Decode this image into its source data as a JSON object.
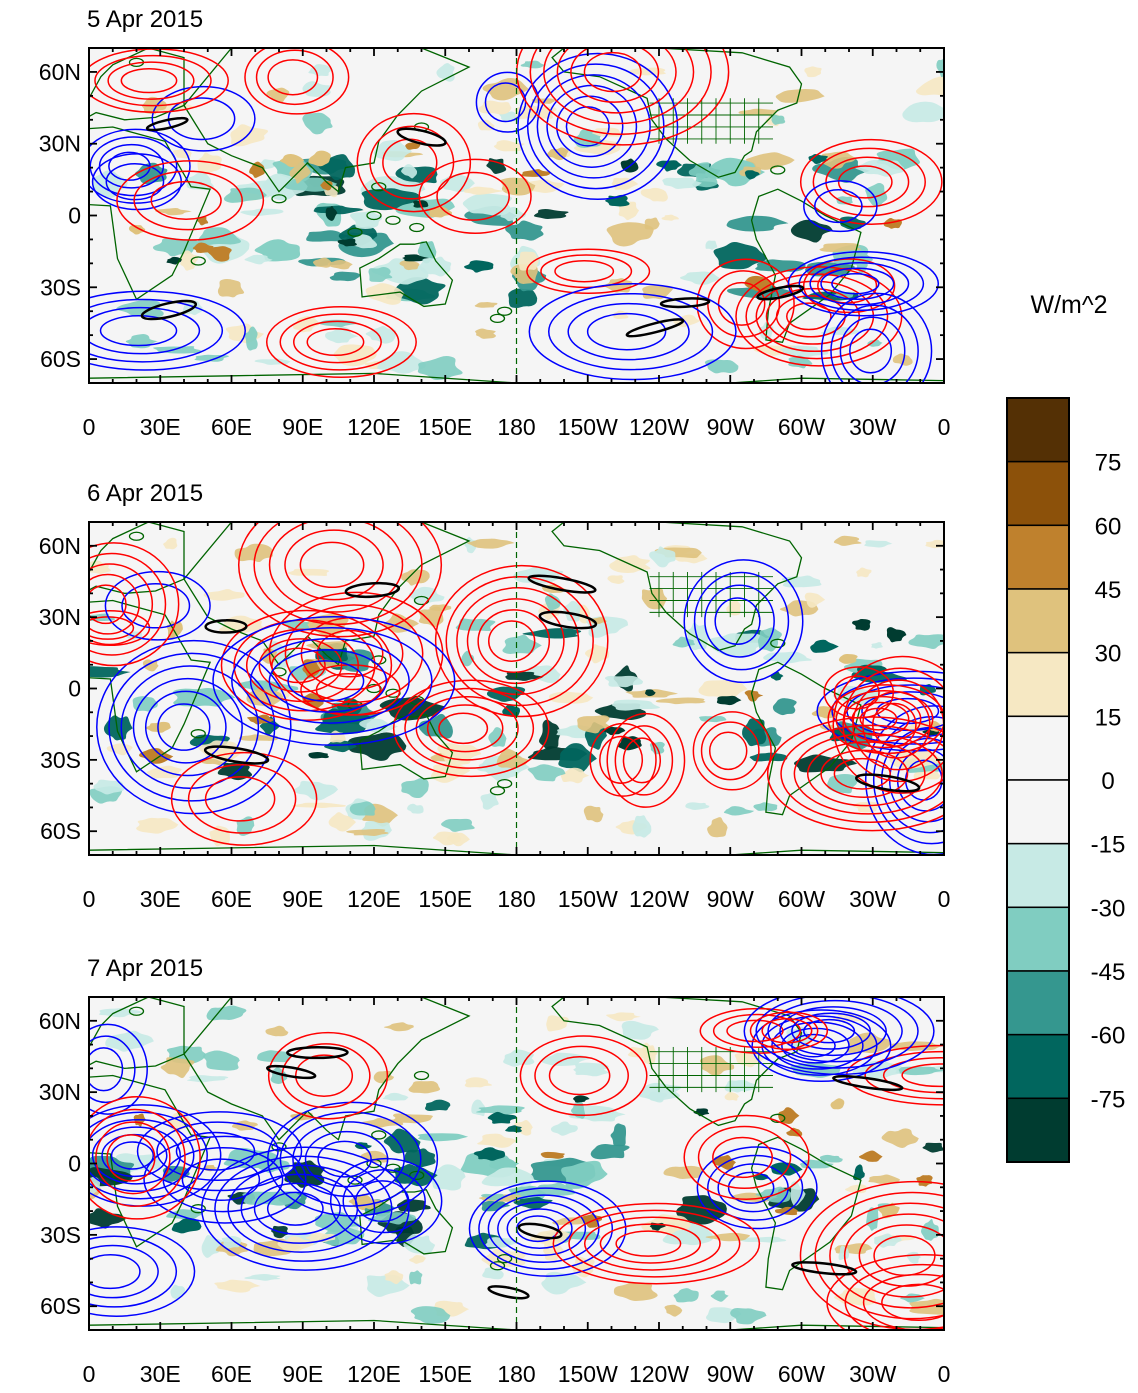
{
  "figure": {
    "panels": [
      {
        "title": "5 Apr 2015"
      },
      {
        "title": "6 Apr 2015"
      },
      {
        "title": "7 Apr 2015"
      }
    ],
    "lat_labels": [
      "60N",
      "30N",
      "0",
      "30S",
      "60S"
    ],
    "lon_labels": [
      "0",
      "30E",
      "60E",
      "90E",
      "120E",
      "150E",
      "180",
      "150W",
      "120W",
      "90W",
      "60W",
      "30W",
      "0"
    ],
    "colorbar": {
      "units": "W/m^2",
      "labels": [
        "75",
        "60",
        "45",
        "30",
        "15",
        "0",
        "-15",
        "-30",
        "-45",
        "-60",
        "-75"
      ],
      "colors": [
        "#543005",
        "#8c510a",
        "#bf812d",
        "#dfc27d",
        "#f6e8c3",
        "#f5f5f5",
        "#f5f5f5",
        "#c7eae5",
        "#80cdc1",
        "#35978f",
        "#01665e",
        "#003c30"
      ]
    },
    "contour_colors": {
      "positive": "#ff0000",
      "negative": "#0000ff",
      "zero": "#000000",
      "coast": "#006400"
    }
  }
}
